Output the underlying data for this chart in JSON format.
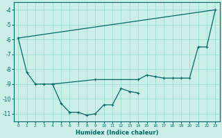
{
  "xlabel": "Humidex (Indice chaleur)",
  "bg_color": "#cceee8",
  "grid_color": "#99ddcc",
  "line_color": "#006666",
  "xlim": [
    -0.5,
    23.5
  ],
  "ylim": [
    -11.5,
    -3.5
  ],
  "yticks": [
    -11,
    -10,
    -9,
    -8,
    -7,
    -6,
    -5,
    -4
  ],
  "xticks": [
    0,
    1,
    2,
    3,
    4,
    5,
    6,
    7,
    8,
    9,
    10,
    11,
    12,
    13,
    14,
    15,
    16,
    17,
    18,
    19,
    20,
    21,
    22,
    23
  ],
  "line1_x": [
    0,
    23
  ],
  "line1_y": [
    -5.9,
    -4.0
  ],
  "line2_x": [
    0,
    1,
    2,
    3,
    4,
    9,
    14,
    15,
    16,
    17,
    18,
    19,
    20,
    21,
    22,
    23
  ],
  "line2_y": [
    -5.9,
    -8.2,
    -9.0,
    -9.0,
    -9.0,
    -8.7,
    -8.7,
    -8.4,
    -8.5,
    -8.6,
    -8.6,
    -8.6,
    -8.6,
    -6.5,
    -6.5,
    -4.0
  ],
  "line3_x": [
    4,
    5,
    6,
    7,
    8,
    9,
    10,
    11,
    12,
    13,
    14
  ],
  "line3_y": [
    -9.0,
    -10.3,
    -10.9,
    -10.9,
    -11.1,
    -11.0,
    -10.4,
    -10.4,
    -9.3,
    -9.5,
    -9.6
  ]
}
